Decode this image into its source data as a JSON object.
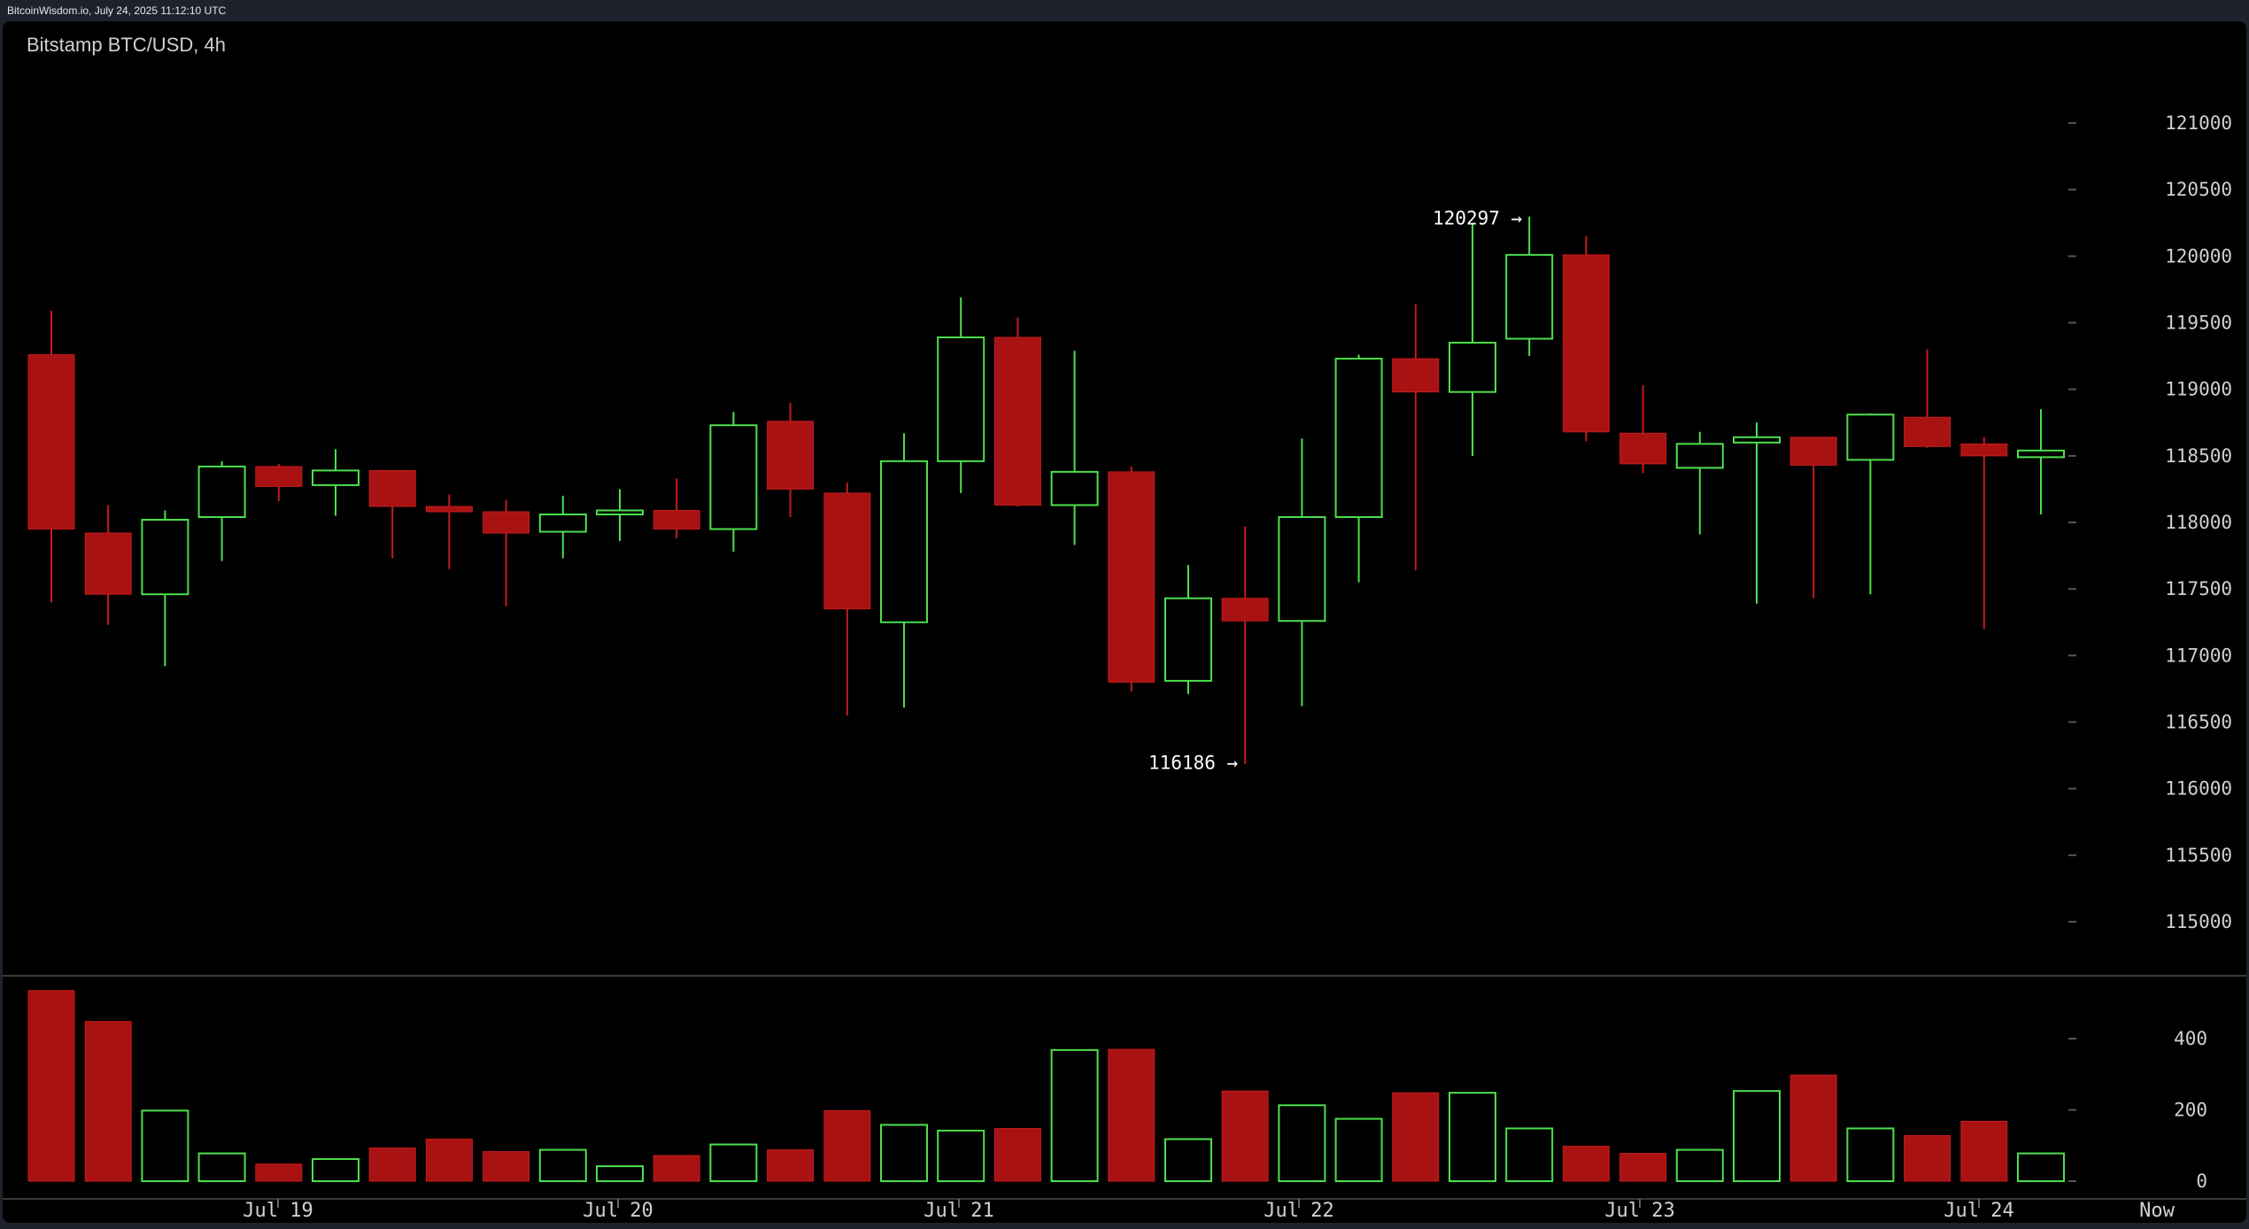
{
  "header": {
    "source": "BitcoinWisdom.io, July 24, 2025 11:12:10 UTC",
    "title": "Bitstamp BTC/USD, 4h"
  },
  "colors": {
    "up": "#4ce04c",
    "down": "#a81212",
    "downBorder": "#c51b1b",
    "background": "#000000",
    "text": "#d0d0d0"
  },
  "chart_data": {
    "type": "candlestick",
    "title": "Bitstamp BTC/USD, 4h",
    "price_axis": {
      "ticks": [
        115000,
        115500,
        116000,
        116500,
        117000,
        117500,
        118000,
        118500,
        119000,
        119500,
        120000,
        120500,
        121000
      ]
    },
    "volume_axis": {
      "ticks": [
        0,
        200,
        400
      ]
    },
    "x_labels": [
      "Jul 19",
      "Jul 20",
      "Jul 21",
      "Jul 22",
      "Jul 23",
      "Jul 24",
      "Now"
    ],
    "annotations": [
      {
        "label": "120297 →",
        "value": 120297
      },
      {
        "label": "116186 →",
        "value": 116186
      }
    ],
    "candles": [
      {
        "o": 119260,
        "h": 119590,
        "l": 117400,
        "c": 117950,
        "v": 535
      },
      {
        "o": 117920,
        "h": 118130,
        "l": 117230,
        "c": 117460,
        "v": 448
      },
      {
        "o": 117460,
        "h": 118090,
        "l": 116920,
        "c": 118020,
        "v": 198
      },
      {
        "o": 118040,
        "h": 118460,
        "l": 117710,
        "c": 118420,
        "v": 78
      },
      {
        "o": 118420,
        "h": 118440,
        "l": 118160,
        "c": 118270,
        "v": 48
      },
      {
        "o": 118280,
        "h": 118550,
        "l": 118050,
        "c": 118390,
        "v": 62
      },
      {
        "o": 118390,
        "h": 118390,
        "l": 117730,
        "c": 118120,
        "v": 93
      },
      {
        "o": 118120,
        "h": 118210,
        "l": 117650,
        "c": 118080,
        "v": 118
      },
      {
        "o": 118080,
        "h": 118170,
        "l": 117370,
        "c": 117920,
        "v": 83
      },
      {
        "o": 117930,
        "h": 118200,
        "l": 117730,
        "c": 118060,
        "v": 88
      },
      {
        "o": 118060,
        "h": 118250,
        "l": 117860,
        "c": 118090,
        "v": 42
      },
      {
        "o": 118090,
        "h": 118330,
        "l": 117880,
        "c": 117950,
        "v": 72
      },
      {
        "o": 117950,
        "h": 118830,
        "l": 117780,
        "c": 118730,
        "v": 103
      },
      {
        "o": 118760,
        "h": 118900,
        "l": 118040,
        "c": 118250,
        "v": 88
      },
      {
        "o": 118220,
        "h": 118300,
        "l": 116550,
        "c": 117350,
        "v": 198
      },
      {
        "o": 117250,
        "h": 118670,
        "l": 116610,
        "c": 118460,
        "v": 158
      },
      {
        "o": 118460,
        "h": 119690,
        "l": 118220,
        "c": 119390,
        "v": 142
      },
      {
        "o": 119390,
        "h": 119540,
        "l": 118120,
        "c": 118130,
        "v": 148
      },
      {
        "o": 118130,
        "h": 119290,
        "l": 117830,
        "c": 118380,
        "v": 368
      },
      {
        "o": 118380,
        "h": 118420,
        "l": 116730,
        "c": 116800,
        "v": 370
      },
      {
        "o": 116810,
        "h": 117680,
        "l": 116710,
        "c": 117430,
        "v": 118
      },
      {
        "o": 117430,
        "h": 117970,
        "l": 116186,
        "c": 117260,
        "v": 253
      },
      {
        "o": 117260,
        "h": 118630,
        "l": 116620,
        "c": 118040,
        "v": 213
      },
      {
        "o": 118040,
        "h": 119260,
        "l": 117550,
        "c": 119230,
        "v": 175
      },
      {
        "o": 119230,
        "h": 119640,
        "l": 117640,
        "c": 118980,
        "v": 248
      },
      {
        "o": 118980,
        "h": 120240,
        "l": 118500,
        "c": 119350,
        "v": 248
      },
      {
        "o": 119380,
        "h": 120297,
        "l": 119250,
        "c": 120010,
        "v": 148
      },
      {
        "o": 120010,
        "h": 120150,
        "l": 118610,
        "c": 118680,
        "v": 98
      },
      {
        "o": 118670,
        "h": 119030,
        "l": 118370,
        "c": 118440,
        "v": 78
      },
      {
        "o": 118410,
        "h": 118680,
        "l": 117910,
        "c": 118590,
        "v": 88
      },
      {
        "o": 118600,
        "h": 118750,
        "l": 117390,
        "c": 118640,
        "v": 253
      },
      {
        "o": 118640,
        "h": 118640,
        "l": 117430,
        "c": 118430,
        "v": 298
      },
      {
        "o": 118470,
        "h": 118820,
        "l": 117460,
        "c": 118810,
        "v": 148
      },
      {
        "o": 118790,
        "h": 119300,
        "l": 118560,
        "c": 118570,
        "v": 128
      },
      {
        "o": 118590,
        "h": 118640,
        "l": 117200,
        "c": 118500,
        "v": 168
      },
      {
        "o": 118490,
        "h": 118850,
        "l": 118060,
        "c": 118540,
        "v": 78
      }
    ]
  }
}
